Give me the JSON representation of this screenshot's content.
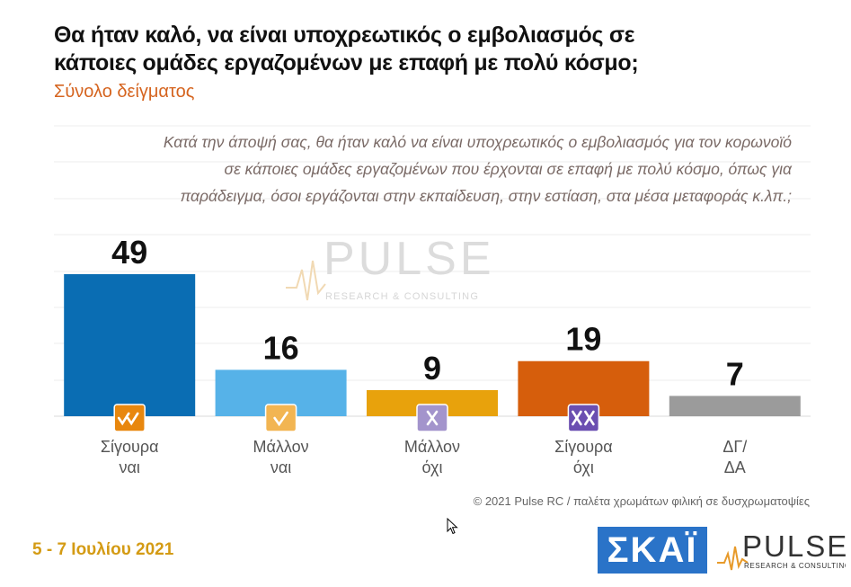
{
  "title": "Θα ήταν καλό, να είναι υποχρεωτικός ο εμβολιασμός σε κάποιες ομάδες εργαζομένων με επαφή με πολύ κόσμο;",
  "subtitle": "Σύνολο δείγματος",
  "question": "Κατά την άποψή σας, θα ήταν καλό να είναι υποχρεωτικός ο εμβολιασμός για τον κορωνοϊό σε κάποιες ομάδες εργαζομένων που έρχονται σε επαφή με πολύ κόσμο, όπως για παράδειγμα, όσοι εργάζονται στην εκπαίδευση, στην εστίαση, στα μέσα μεταφοράς κ.λπ.;",
  "watermark": {
    "brand": "PULSE",
    "tagline": "RESEARCH & CONSULTING"
  },
  "credit": "© 2021 Pulse RC   /   παλέτα χρωμάτων φιλική σε δυσχρωματοψίες",
  "date": "5 - 7  Ιουλίου  2021",
  "logos": {
    "skai": "ΣΚΑΪ",
    "pulse": "PULSE",
    "pulse_tagline": "RESEARCH & CONSULTING"
  },
  "chart_data": {
    "type": "bar",
    "categories": [
      "Σίγουρα\nναι",
      "Μάλλον\nναι",
      "Μάλλον\nόχι",
      "Σίγουρα\nόχι",
      "ΔΓ/\nΔΑ"
    ],
    "values": [
      49,
      16,
      9,
      19,
      7
    ],
    "colors": [
      "#0a6db3",
      "#56b2e8",
      "#e8a20c",
      "#d65e0c",
      "#9b9b9b"
    ],
    "icons": [
      "double-check-icon",
      "check-icon",
      "cross-icon",
      "double-cross-icon",
      ""
    ],
    "icon_colors": [
      "#e8870e",
      "#f2b552",
      "#a394cc",
      "#6b4fb1",
      ""
    ],
    "ylim": [
      0,
      60
    ],
    "grid": true,
    "legend": "none"
  }
}
